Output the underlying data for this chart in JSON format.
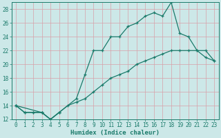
{
  "title": "",
  "xlabel": "Humidex (Indice chaleur)",
  "bg_color": "#cce8e8",
  "grid_color": "#d8a0a8",
  "line_color": "#1a7a6a",
  "marker": "+",
  "markersize": 3,
  "linewidth": 0.9,
  "markeredgewidth": 0.9,
  "xlim": [
    -0.5,
    23.5
  ],
  "ylim": [
    12,
    29
  ],
  "xticks": [
    0,
    1,
    2,
    3,
    4,
    5,
    6,
    7,
    8,
    9,
    10,
    11,
    12,
    13,
    14,
    15,
    16,
    17,
    18,
    19,
    20,
    21,
    22,
    23
  ],
  "yticks": [
    12,
    14,
    16,
    18,
    20,
    22,
    24,
    26,
    28
  ],
  "curve1_x": [
    0,
    1,
    2,
    3,
    4,
    5
  ],
  "curve1_y": [
    14,
    13,
    13,
    13,
    12,
    13
  ],
  "curve2_x": [
    0,
    3,
    4,
    5,
    7,
    8,
    9,
    10,
    11,
    12,
    13,
    14,
    15,
    16,
    17,
    18
  ],
  "curve2_y": [
    14,
    13,
    12,
    13,
    15,
    18.5,
    22,
    22,
    24,
    24,
    25.5,
    26,
    27,
    27.5,
    27,
    29
  ],
  "curve3_x": [
    0,
    1,
    2,
    3,
    4,
    5,
    6,
    7,
    8,
    9,
    10,
    11,
    12,
    13,
    14,
    15,
    16,
    17,
    18,
    19,
    20,
    21,
    22,
    23
  ],
  "curve3_y": [
    14,
    13,
    13,
    13,
    12,
    13,
    14,
    14.5,
    15,
    16,
    17,
    18,
    18.5,
    19,
    20,
    20.5,
    21,
    21.5,
    22,
    22,
    22,
    22,
    21,
    20.5
  ],
  "curve4_x": [
    18,
    19,
    20,
    21,
    22,
    23
  ],
  "curve4_y": [
    29,
    24.5,
    24,
    22,
    22,
    20.5
  ],
  "xlabel_fontsize": 6.5,
  "tick_fontsize": 5.5
}
